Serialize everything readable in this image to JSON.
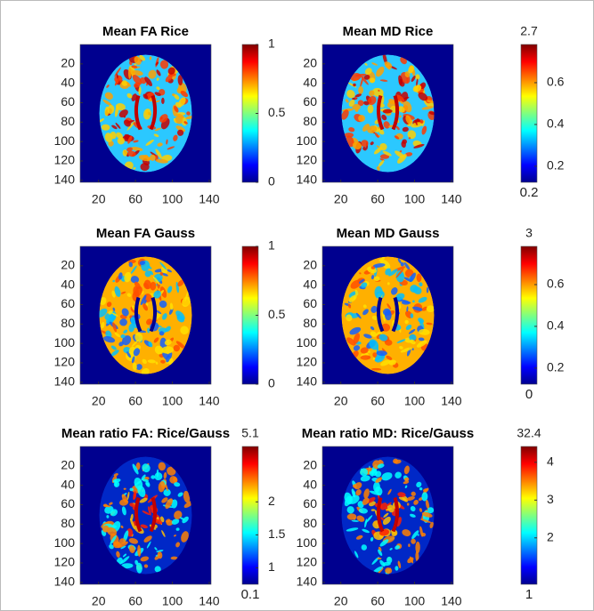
{
  "panels": [
    {
      "title": "Mean FA Rice",
      "xlim": [
        0,
        142
      ],
      "ylim": [
        0,
        142
      ],
      "xticks": [
        20,
        60,
        100,
        140
      ],
      "yticks": [
        20,
        40,
        60,
        80,
        100,
        120,
        140
      ],
      "clim": [
        0,
        1
      ],
      "cticks": [
        0,
        0.5,
        1
      ]
    },
    {
      "title": "Mean MD Rice",
      "xlim": [
        0,
        142
      ],
      "ylim": [
        0,
        142
      ],
      "xticks": [
        20,
        60,
        100,
        140
      ],
      "yticks": [
        20,
        40,
        60,
        80,
        100,
        120,
        140
      ],
      "clim": [
        0.123,
        0.783
      ],
      "cticks": [
        0.2,
        0.4,
        0.6
      ],
      "cmax_label": 2.7,
      "cmin_label": 0.2
    },
    {
      "title": "Mean FA Gauss",
      "xlim": [
        0,
        142
      ],
      "ylim": [
        0,
        142
      ],
      "xticks": [
        20,
        60,
        100,
        140
      ],
      "yticks": [
        20,
        40,
        60,
        80,
        100,
        120,
        140
      ],
      "clim": [
        0,
        1
      ],
      "cticks": [
        0,
        0.5,
        1
      ]
    },
    {
      "title": "Mean MD Gauss",
      "xlim": [
        0,
        142
      ],
      "ylim": [
        0,
        142
      ],
      "xticks": [
        20,
        60,
        100,
        140
      ],
      "yticks": [
        20,
        40,
        60,
        80,
        100,
        120,
        140
      ],
      "clim": [
        0.123,
        0.783
      ],
      "cticks": [
        0.2,
        0.4,
        0.6
      ],
      "cmax_label": 3,
      "cmin_label": 0
    },
    {
      "title": "Mean ratio FA: Rice/Gauss",
      "xlim": [
        0,
        142
      ],
      "ylim": [
        0,
        142
      ],
      "xticks": [
        20,
        60,
        100,
        140
      ],
      "yticks": [
        20,
        40,
        60,
        80,
        100,
        120,
        140
      ],
      "clim": [
        0.75,
        2.84
      ],
      "cticks": [
        1,
        1.5,
        2
      ],
      "cmax_label": 5.1,
      "cmin_label": 0.1
    },
    {
      "title": "Mean ratio MD: Rice/Gauss",
      "xlim": [
        0,
        142
      ],
      "ylim": [
        0,
        142
      ],
      "xticks": [
        20,
        60,
        100,
        140
      ],
      "yticks": [
        20,
        40,
        60,
        80,
        100,
        120,
        140
      ],
      "clim": [
        0.77,
        4.42
      ],
      "cticks": [
        2,
        3,
        4
      ],
      "cmax_label": 32.4,
      "cmin_label": 1
    }
  ]
}
